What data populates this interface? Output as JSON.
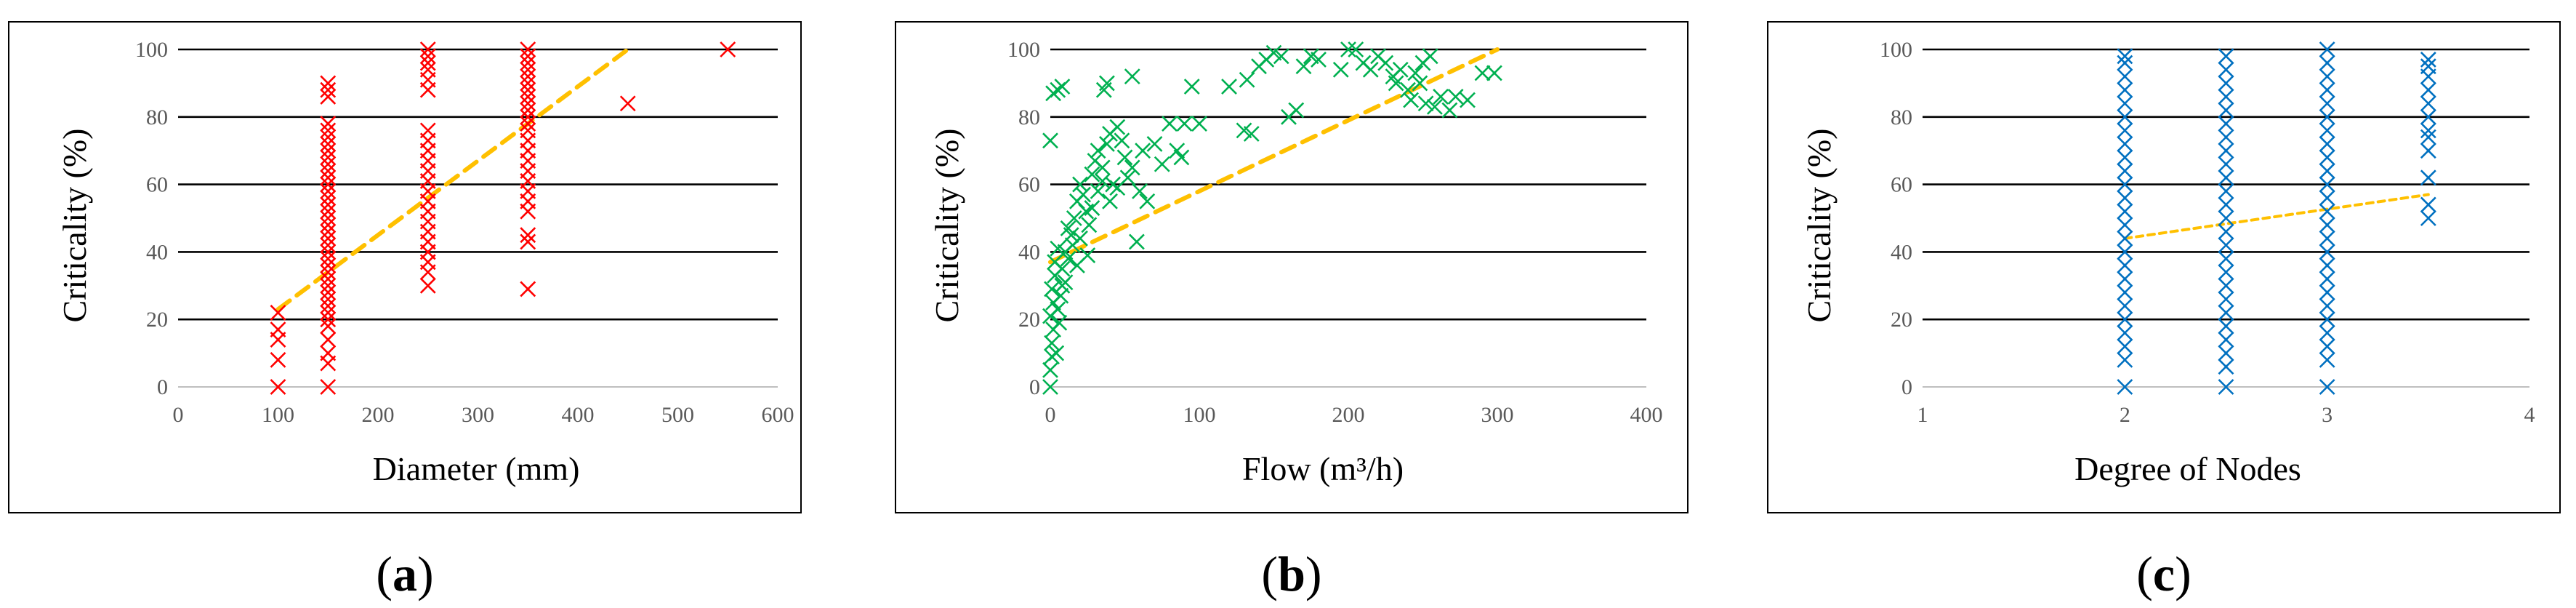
{
  "colors": {
    "panel_a_marker": "#ff0000",
    "panel_b_marker": "#00b050",
    "panel_c_marker": "#0070c0",
    "trendline": "#ffc000"
  },
  "chart_data": [
    {
      "type": "scatter",
      "panel_label": "a",
      "xlabel": "Diameter (mm)",
      "ylabel": "Criticality (%)",
      "xlim": [
        0,
        600
      ],
      "ylim": [
        0,
        100
      ],
      "x_ticks": [
        0,
        100,
        200,
        300,
        400,
        500,
        600
      ],
      "y_ticks": [
        0,
        20,
        40,
        60,
        80,
        100
      ],
      "marker": "x",
      "color_key": "panel_a_marker",
      "points": [
        [
          100,
          0
        ],
        [
          100,
          8
        ],
        [
          100,
          14
        ],
        [
          100,
          17
        ],
        [
          100,
          22
        ],
        [
          150,
          0
        ],
        [
          150,
          7
        ],
        [
          150,
          10
        ],
        [
          150,
          14
        ],
        [
          150,
          18
        ],
        [
          150,
          20
        ],
        [
          150,
          22
        ],
        [
          150,
          24
        ],
        [
          150,
          26
        ],
        [
          150,
          28
        ],
        [
          150,
          30
        ],
        [
          150,
          32
        ],
        [
          150,
          34
        ],
        [
          150,
          36
        ],
        [
          150,
          38
        ],
        [
          150,
          40
        ],
        [
          150,
          42
        ],
        [
          150,
          44
        ],
        [
          150,
          46
        ],
        [
          150,
          48
        ],
        [
          150,
          50
        ],
        [
          150,
          52
        ],
        [
          150,
          54
        ],
        [
          150,
          56
        ],
        [
          150,
          58
        ],
        [
          150,
          60
        ],
        [
          150,
          62
        ],
        [
          150,
          64
        ],
        [
          150,
          66
        ],
        [
          150,
          68
        ],
        [
          150,
          70
        ],
        [
          150,
          72
        ],
        [
          150,
          74
        ],
        [
          150,
          76
        ],
        [
          150,
          78
        ],
        [
          150,
          86
        ],
        [
          150,
          88
        ],
        [
          150,
          90
        ],
        [
          250,
          30
        ],
        [
          250,
          34
        ],
        [
          250,
          37
        ],
        [
          250,
          40
        ],
        [
          250,
          43
        ],
        [
          250,
          46
        ],
        [
          250,
          49
        ],
        [
          250,
          52
        ],
        [
          250,
          55
        ],
        [
          250,
          58
        ],
        [
          250,
          61
        ],
        [
          250,
          64
        ],
        [
          250,
          67
        ],
        [
          250,
          70
        ],
        [
          250,
          73
        ],
        [
          250,
          76
        ],
        [
          250,
          88
        ],
        [
          250,
          91
        ],
        [
          250,
          94
        ],
        [
          250,
          96
        ],
        [
          250,
          98
        ],
        [
          250,
          100
        ],
        [
          350,
          29
        ],
        [
          350,
          43
        ],
        [
          350,
          45
        ],
        [
          350,
          52
        ],
        [
          350,
          55
        ],
        [
          350,
          58
        ],
        [
          350,
          61
        ],
        [
          350,
          64
        ],
        [
          350,
          67
        ],
        [
          350,
          70
        ],
        [
          350,
          73
        ],
        [
          350,
          76
        ],
        [
          350,
          78
        ],
        [
          350,
          80
        ],
        [
          350,
          82
        ],
        [
          350,
          84
        ],
        [
          350,
          86
        ],
        [
          350,
          88
        ],
        [
          350,
          90
        ],
        [
          350,
          92
        ],
        [
          350,
          94
        ],
        [
          350,
          96
        ],
        [
          350,
          98
        ],
        [
          350,
          100
        ],
        [
          450,
          84
        ],
        [
          550,
          100
        ]
      ],
      "trendline": {
        "x": [
          100,
          450
        ],
        "y": [
          23,
          100
        ]
      }
    },
    {
      "type": "scatter",
      "panel_label": "b",
      "xlabel": "Flow (m³/h)",
      "ylabel": "Criticality (%)",
      "xlim": [
        0,
        400
      ],
      "ylim": [
        0,
        100
      ],
      "x_ticks": [
        0,
        100,
        200,
        300,
        400
      ],
      "y_ticks": [
        0,
        20,
        40,
        60,
        80,
        100
      ],
      "marker": "x",
      "color_key": "panel_b_marker",
      "points": [
        [
          0,
          0
        ],
        [
          0,
          5
        ],
        [
          1,
          9
        ],
        [
          1,
          13
        ],
        [
          2,
          17
        ],
        [
          0,
          21
        ],
        [
          2,
          25
        ],
        [
          1,
          29
        ],
        [
          3,
          33
        ],
        [
          0,
          73
        ],
        [
          2,
          87
        ],
        [
          5,
          88
        ],
        [
          8,
          89
        ],
        [
          3,
          37
        ],
        [
          5,
          41
        ],
        [
          4,
          10
        ],
        [
          6,
          19
        ],
        [
          7,
          27
        ],
        [
          8,
          35
        ],
        [
          10,
          31
        ],
        [
          12,
          38
        ],
        [
          14,
          45
        ],
        [
          16,
          50
        ],
        [
          18,
          55
        ],
        [
          20,
          60
        ],
        [
          22,
          57
        ],
        [
          24,
          52
        ],
        [
          26,
          48
        ],
        [
          28,
          63
        ],
        [
          30,
          67
        ],
        [
          32,
          70
        ],
        [
          35,
          65
        ],
        [
          38,
          72
        ],
        [
          40,
          75
        ],
        [
          42,
          60
        ],
        [
          45,
          77
        ],
        [
          48,
          73
        ],
        [
          50,
          68
        ],
        [
          52,
          62
        ],
        [
          55,
          65
        ],
        [
          58,
          43
        ],
        [
          60,
          58
        ],
        [
          62,
          70
        ],
        [
          65,
          55
        ],
        [
          70,
          72
        ],
        [
          75,
          66
        ],
        [
          80,
          78
        ],
        [
          85,
          70
        ],
        [
          88,
          68
        ],
        [
          90,
          78
        ],
        [
          95,
          89
        ],
        [
          100,
          78
        ],
        [
          5,
          23
        ],
        [
          8,
          30
        ],
        [
          10,
          40
        ],
        [
          12,
          47
        ],
        [
          15,
          42
        ],
        [
          18,
          36
        ],
        [
          20,
          44
        ],
        [
          25,
          39
        ],
        [
          28,
          53
        ],
        [
          32,
          58
        ],
        [
          35,
          61
        ],
        [
          36,
          88
        ],
        [
          38,
          90
        ],
        [
          40,
          55
        ],
        [
          45,
          59
        ],
        [
          55,
          92
        ],
        [
          120,
          89
        ],
        [
          130,
          76
        ],
        [
          132,
          91
        ],
        [
          135,
          75
        ],
        [
          140,
          95
        ],
        [
          145,
          97
        ],
        [
          150,
          99
        ],
        [
          155,
          98
        ],
        [
          160,
          80
        ],
        [
          165,
          82
        ],
        [
          170,
          95
        ],
        [
          175,
          98
        ],
        [
          180,
          97
        ],
        [
          195,
          94
        ],
        [
          200,
          100
        ],
        [
          205,
          100
        ],
        [
          210,
          96
        ],
        [
          215,
          94
        ],
        [
          220,
          98
        ],
        [
          225,
          96
        ],
        [
          230,
          92
        ],
        [
          232,
          90
        ],
        [
          235,
          94
        ],
        [
          240,
          88
        ],
        [
          242,
          85
        ],
        [
          245,
          93
        ],
        [
          248,
          90
        ],
        [
          250,
          96
        ],
        [
          252,
          84
        ],
        [
          255,
          98
        ],
        [
          258,
          83
        ],
        [
          262,
          86
        ],
        [
          268,
          82
        ],
        [
          272,
          86
        ],
        [
          280,
          85
        ],
        [
          290,
          93
        ],
        [
          298,
          93
        ]
      ],
      "trendline": {
        "x": [
          0,
          300
        ],
        "y": [
          37,
          100
        ]
      }
    },
    {
      "type": "scatter",
      "panel_label": "c",
      "xlabel": "Degree of Nodes",
      "ylabel": "Criticality (%)",
      "xlim": [
        1,
        4
      ],
      "ylim": [
        0,
        100
      ],
      "x_ticks": [
        1,
        2,
        3,
        4
      ],
      "y_ticks": [
        0,
        20,
        40,
        60,
        80,
        100
      ],
      "marker": "x",
      "color_key": "panel_c_marker",
      "points": [
        [
          2,
          0
        ],
        [
          2,
          8
        ],
        [
          2,
          12
        ],
        [
          2,
          16
        ],
        [
          2,
          20
        ],
        [
          2,
          24
        ],
        [
          2,
          28
        ],
        [
          2,
          32
        ],
        [
          2,
          36
        ],
        [
          2,
          40
        ],
        [
          2,
          44
        ],
        [
          2,
          48
        ],
        [
          2,
          52
        ],
        [
          2,
          56
        ],
        [
          2,
          60
        ],
        [
          2,
          64
        ],
        [
          2,
          68
        ],
        [
          2,
          72
        ],
        [
          2,
          76
        ],
        [
          2,
          80
        ],
        [
          2,
          84
        ],
        [
          2,
          88
        ],
        [
          2,
          92
        ],
        [
          2,
          96
        ],
        [
          2,
          98
        ],
        [
          2.5,
          0
        ],
        [
          2.5,
          6
        ],
        [
          2.5,
          10
        ],
        [
          2.5,
          14
        ],
        [
          2.5,
          18
        ],
        [
          2.5,
          22
        ],
        [
          2.5,
          26
        ],
        [
          2.5,
          30
        ],
        [
          2.5,
          34
        ],
        [
          2.5,
          38
        ],
        [
          2.5,
          42
        ],
        [
          2.5,
          46
        ],
        [
          2.5,
          50
        ],
        [
          2.5,
          54
        ],
        [
          2.5,
          58
        ],
        [
          2.5,
          62
        ],
        [
          2.5,
          66
        ],
        [
          2.5,
          70
        ],
        [
          2.5,
          74
        ],
        [
          2.5,
          78
        ],
        [
          2.5,
          82
        ],
        [
          2.5,
          86
        ],
        [
          2.5,
          90
        ],
        [
          2.5,
          94
        ],
        [
          2.5,
          98
        ],
        [
          3,
          0
        ],
        [
          3,
          8
        ],
        [
          3,
          12
        ],
        [
          3,
          16
        ],
        [
          3,
          20
        ],
        [
          3,
          24
        ],
        [
          3,
          28
        ],
        [
          3,
          32
        ],
        [
          3,
          36
        ],
        [
          3,
          40
        ],
        [
          3,
          44
        ],
        [
          3,
          48
        ],
        [
          3,
          52
        ],
        [
          3,
          56
        ],
        [
          3,
          60
        ],
        [
          3,
          64
        ],
        [
          3,
          68
        ],
        [
          3,
          72
        ],
        [
          3,
          76
        ],
        [
          3,
          80
        ],
        [
          3,
          84
        ],
        [
          3,
          88
        ],
        [
          3,
          92
        ],
        [
          3,
          96
        ],
        [
          3,
          100
        ],
        [
          3.5,
          50
        ],
        [
          3.5,
          54
        ],
        [
          3.5,
          62
        ],
        [
          3.5,
          70
        ],
        [
          3.5,
          74
        ],
        [
          3.5,
          76
        ],
        [
          3.5,
          80
        ],
        [
          3.5,
          84
        ],
        [
          3.5,
          88
        ],
        [
          3.5,
          92
        ],
        [
          3.5,
          95
        ],
        [
          3.5,
          97
        ]
      ],
      "trendline": {
        "x": [
          2,
          3.5
        ],
        "y": [
          44,
          57
        ]
      }
    }
  ]
}
